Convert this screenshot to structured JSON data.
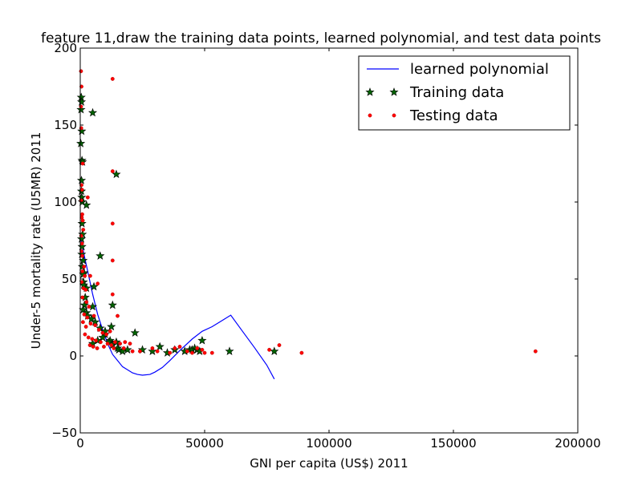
{
  "chart_data": {
    "type": "scatter",
    "title": "feature 11,draw the training data points, learned polynomial, and test data points",
    "xlabel": "GNI per capita (US$) 2011",
    "ylabel": "Under-5 mortality rate (U5MR) 2011",
    "xlim": [
      0,
      200000
    ],
    "ylim": [
      -50,
      200
    ],
    "xticks": [
      0,
      50000,
      100000,
      150000,
      200000
    ],
    "xtick_labels": [
      "0",
      "50000",
      "100000",
      "150000",
      "200000"
    ],
    "yticks": [
      -50,
      0,
      50,
      100,
      150,
      200
    ],
    "ytick_labels": [
      "−50",
      "0",
      "50",
      "100",
      "150",
      "200"
    ],
    "grid": false,
    "legend_position": "top-right",
    "series": [
      {
        "name": "learned polynomial",
        "kind": "line",
        "color": "#0000ff",
        "points": [
          [
            0,
            78
          ],
          [
            1500,
            66
          ],
          [
            3000,
            55
          ],
          [
            5000,
            40
          ],
          [
            7000,
            27
          ],
          [
            9000,
            17
          ],
          [
            11000,
            8
          ],
          [
            13000,
            1
          ],
          [
            15000,
            -3
          ],
          [
            17000,
            -7
          ],
          [
            19000,
            -9
          ],
          [
            21000,
            -11
          ],
          [
            23000,
            -12
          ],
          [
            25000,
            -12.5
          ],
          [
            28000,
            -12
          ],
          [
            30000,
            -10.5
          ],
          [
            33000,
            -7.5
          ],
          [
            36000,
            -3
          ],
          [
            40000,
            3.5
          ],
          [
            45000,
            11
          ],
          [
            49000,
            16
          ],
          [
            53000,
            19
          ],
          [
            57000,
            23
          ],
          [
            60500,
            26.5
          ],
          [
            65000,
            16.5
          ],
          [
            70000,
            5.5
          ],
          [
            75000,
            -6
          ],
          [
            78000,
            -15
          ]
        ]
      },
      {
        "name": "Training data",
        "kind": "marker",
        "marker": "star",
        "color": "#006400",
        "points": [
          [
            400,
            168
          ],
          [
            500,
            165
          ],
          [
            300,
            160
          ],
          [
            600,
            146
          ],
          [
            200,
            138
          ],
          [
            700,
            127
          ],
          [
            900,
            126
          ],
          [
            500,
            114
          ],
          [
            500,
            107
          ],
          [
            600,
            103
          ],
          [
            800,
            100
          ],
          [
            2500,
            98
          ],
          [
            700,
            86
          ],
          [
            900,
            79
          ],
          [
            500,
            76
          ],
          [
            700,
            71
          ],
          [
            600,
            66
          ],
          [
            1200,
            62
          ],
          [
            800,
            58
          ],
          [
            1500,
            54
          ],
          [
            1200,
            53
          ],
          [
            1300,
            48
          ],
          [
            1400,
            46
          ],
          [
            2500,
            44
          ],
          [
            2000,
            38
          ],
          [
            1700,
            33
          ],
          [
            1200,
            30
          ],
          [
            2500,
            28
          ],
          [
            3000,
            26
          ],
          [
            5000,
            158
          ],
          [
            14500,
            118
          ],
          [
            8000,
            65
          ],
          [
            5500,
            45
          ],
          [
            5000,
            32
          ],
          [
            4500,
            24
          ],
          [
            6000,
            22
          ],
          [
            8000,
            18
          ],
          [
            10000,
            14
          ],
          [
            9000,
            12
          ],
          [
            7000,
            10
          ],
          [
            5000,
            8
          ],
          [
            12000,
            10
          ],
          [
            12500,
            19
          ],
          [
            13000,
            33
          ],
          [
            10000,
            16
          ],
          [
            11500,
            9
          ],
          [
            13000,
            7
          ],
          [
            14500,
            9
          ],
          [
            15000,
            5
          ],
          [
            15500,
            4
          ],
          [
            17000,
            3
          ],
          [
            19000,
            4
          ],
          [
            22000,
            15
          ],
          [
            25000,
            4
          ],
          [
            29000,
            3
          ],
          [
            32000,
            6
          ],
          [
            35000,
            2
          ],
          [
            38000,
            4
          ],
          [
            42000,
            3
          ],
          [
            44000,
            4
          ],
          [
            45000,
            4
          ],
          [
            46000,
            5
          ],
          [
            47000,
            4
          ],
          [
            48000,
            3
          ],
          [
            49000,
            10
          ],
          [
            60000,
            3
          ],
          [
            78000,
            3
          ]
        ]
      },
      {
        "name": "Testing data",
        "kind": "marker",
        "marker": "dot",
        "color": "#ff0000",
        "points": [
          [
            300,
            185
          ],
          [
            500,
            175
          ],
          [
            13000,
            180
          ],
          [
            300,
            162
          ],
          [
            400,
            148
          ],
          [
            1000,
            125
          ],
          [
            13000,
            120
          ],
          [
            500,
            111
          ],
          [
            700,
            108
          ],
          [
            3000,
            103
          ],
          [
            400,
            101
          ],
          [
            800,
            92
          ],
          [
            600,
            90
          ],
          [
            1000,
            88
          ],
          [
            13000,
            86
          ],
          [
            1200,
            82
          ],
          [
            400,
            78
          ],
          [
            700,
            73
          ],
          [
            500,
            68
          ],
          [
            800,
            65
          ],
          [
            13000,
            62
          ],
          [
            1500,
            58
          ],
          [
            900,
            55
          ],
          [
            1800,
            52
          ],
          [
            4000,
            52
          ],
          [
            600,
            48
          ],
          [
            7000,
            47
          ],
          [
            1300,
            44
          ],
          [
            2200,
            43
          ],
          [
            13000,
            40
          ],
          [
            900,
            38
          ],
          [
            2500,
            35
          ],
          [
            3500,
            32
          ],
          [
            15000,
            26
          ],
          [
            1600,
            27
          ],
          [
            2800,
            25
          ],
          [
            5500,
            26
          ],
          [
            1100,
            22
          ],
          [
            2300,
            19
          ],
          [
            4200,
            21
          ],
          [
            6000,
            20
          ],
          [
            7500,
            17
          ],
          [
            9000,
            15
          ],
          [
            10500,
            14
          ],
          [
            12000,
            16
          ],
          [
            1900,
            14
          ],
          [
            3300,
            12
          ],
          [
            4800,
            11
          ],
          [
            6300,
            10
          ],
          [
            8200,
            9
          ],
          [
            11000,
            8
          ],
          [
            12500,
            7
          ],
          [
            14000,
            9
          ],
          [
            16000,
            8
          ],
          [
            18000,
            9
          ],
          [
            20000,
            8
          ],
          [
            3900,
            7
          ],
          [
            5200,
            6
          ],
          [
            6800,
            5
          ],
          [
            9500,
            6
          ],
          [
            13500,
            5
          ],
          [
            17500,
            5
          ],
          [
            21000,
            3
          ],
          [
            24000,
            3
          ],
          [
            29000,
            5
          ],
          [
            31000,
            3
          ],
          [
            36000,
            2
          ],
          [
            38000,
            5
          ],
          [
            40000,
            6
          ],
          [
            43000,
            3
          ],
          [
            45000,
            2
          ],
          [
            47000,
            5
          ],
          [
            49000,
            4
          ],
          [
            50000,
            2
          ],
          [
            53000,
            2
          ],
          [
            76000,
            4
          ],
          [
            80000,
            7
          ],
          [
            89000,
            2
          ],
          [
            183000,
            3
          ]
        ]
      }
    ]
  }
}
